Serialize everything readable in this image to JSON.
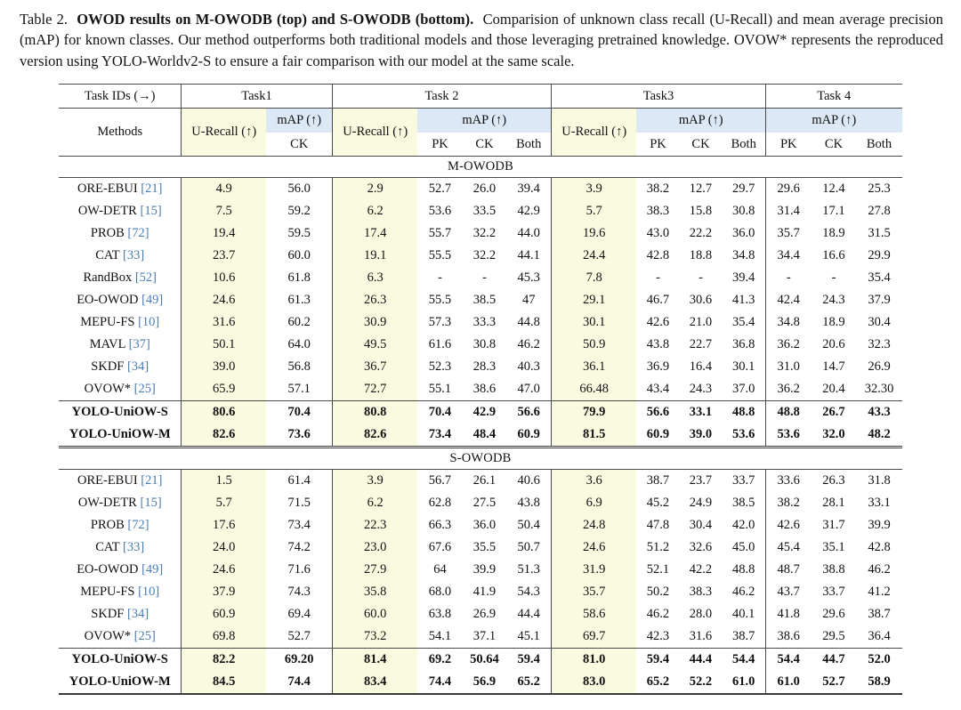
{
  "caption": {
    "label": "Table 2.",
    "bold": "OWOD results on M-OWODB (top) and S-OWODB (bottom).",
    "rest": "Comparision of unknown class recall (U-Recall) and mean average precision (mAP) for known classes. Our method outperforms both traditional models and those leveraging pretrained knowledge. OVOW* represents the reproduced version using YOLO-Worldv2-S to ensure a fair comparison with our model at the same scale."
  },
  "colors": {
    "u_recall_highlight": "#fafae1",
    "map_header_highlight": "#dce8f6",
    "citation_link": "#4d7cb0"
  },
  "table": {
    "header": {
      "task_ids_label": "Task IDs (→)",
      "methods_label": "Methods",
      "tasks": [
        "Task1",
        "Task 2",
        "Task3",
        "Task 4"
      ],
      "u_recall_label": "U-Recall (↑)",
      "map_label": "mAP (↑)",
      "sub_pk": "PK",
      "sub_ck": "CK",
      "sub_both": "Both"
    },
    "columns": [
      "Task1 U-Recall",
      "Task1 CK",
      "Task2 U-Recall",
      "Task2 PK",
      "Task2 CK",
      "Task2 Both",
      "Task3 U-Recall",
      "Task3 PK",
      "Task3 CK",
      "Task3 Both",
      "Task4 PK",
      "Task4 CK",
      "Task4 Both"
    ],
    "sections": [
      {
        "title": "M-OWODB",
        "rows": [
          {
            "method": "ORE-EBUI",
            "cite": "[21]",
            "bold": false,
            "values": [
              "4.9",
              "56.0",
              "2.9",
              "52.7",
              "26.0",
              "39.4",
              "3.9",
              "38.2",
              "12.7",
              "29.7",
              "29.6",
              "12.4",
              "25.3"
            ]
          },
          {
            "method": "OW-DETR",
            "cite": "[15]",
            "bold": false,
            "values": [
              "7.5",
              "59.2",
              "6.2",
              "53.6",
              "33.5",
              "42.9",
              "5.7",
              "38.3",
              "15.8",
              "30.8",
              "31.4",
              "17.1",
              "27.8"
            ]
          },
          {
            "method": "PROB",
            "cite": "[72]",
            "bold": false,
            "values": [
              "19.4",
              "59.5",
              "17.4",
              "55.7",
              "32.2",
              "44.0",
              "19.6",
              "43.0",
              "22.2",
              "36.0",
              "35.7",
              "18.9",
              "31.5"
            ]
          },
          {
            "method": "CAT",
            "cite": "[33]",
            "bold": false,
            "values": [
              "23.7",
              "60.0",
              "19.1",
              "55.5",
              "32.2",
              "44.1",
              "24.4",
              "42.8",
              "18.8",
              "34.8",
              "34.4",
              "16.6",
              "29.9"
            ]
          },
          {
            "method": "RandBox",
            "cite": "[52]",
            "bold": false,
            "values": [
              "10.6",
              "61.8",
              "6.3",
              "-",
              "-",
              "45.3",
              "7.8",
              "-",
              "-",
              "39.4",
              "-",
              "-",
              "35.4"
            ]
          },
          {
            "method": "EO-OWOD",
            "cite": "[49]",
            "bold": false,
            "values": [
              "24.6",
              "61.3",
              "26.3",
              "55.5",
              "38.5",
              "47",
              "29.1",
              "46.7",
              "30.6",
              "41.3",
              "42.4",
              "24.3",
              "37.9"
            ]
          },
          {
            "method": "MEPU-FS",
            "cite": "[10]",
            "bold": false,
            "values": [
              "31.6",
              "60.2",
              "30.9",
              "57.3",
              "33.3",
              "44.8",
              "30.1",
              "42.6",
              "21.0",
              "35.4",
              "34.8",
              "18.9",
              "30.4"
            ]
          },
          {
            "method": "MAVL",
            "cite": "[37]",
            "bold": false,
            "values": [
              "50.1",
              "64.0",
              "49.5",
              "61.6",
              "30.8",
              "46.2",
              "50.9",
              "43.8",
              "22.7",
              "36.8",
              "36.2",
              "20.6",
              "32.3"
            ]
          },
          {
            "method": "SKDF",
            "cite": "[34]",
            "bold": false,
            "values": [
              "39.0",
              "56.8",
              "36.7",
              "52.3",
              "28.3",
              "40.3",
              "36.1",
              "36.9",
              "16.4",
              "30.1",
              "31.0",
              "14.7",
              "26.9"
            ]
          },
          {
            "method": "OVOW*",
            "cite": "[25]",
            "bold": false,
            "values": [
              "65.9",
              "57.1",
              "72.7",
              "55.1",
              "38.6",
              "47.0",
              "66.48",
              "43.4",
              "24.3",
              "37.0",
              "36.2",
              "20.4",
              "32.30"
            ]
          },
          {
            "method": "YOLO-UniOW-S",
            "cite": "",
            "bold": true,
            "rule_above": true,
            "values": [
              "80.6",
              "70.4",
              "80.8",
              "70.4",
              "42.9",
              "56.6",
              "79.9",
              "56.6",
              "33.1",
              "48.8",
              "48.8",
              "26.7",
              "43.3"
            ]
          },
          {
            "method": "YOLO-UniOW-M",
            "cite": "",
            "bold": true,
            "values": [
              "82.6",
              "73.6",
              "82.6",
              "73.4",
              "48.4",
              "60.9",
              "81.5",
              "60.9",
              "39.0",
              "53.6",
              "53.6",
              "32.0",
              "48.2"
            ]
          }
        ]
      },
      {
        "title": "S-OWODB",
        "rows": [
          {
            "method": "ORE-EBUI",
            "cite": "[21]",
            "bold": false,
            "values": [
              "1.5",
              "61.4",
              "3.9",
              "56.7",
              "26.1",
              "40.6",
              "3.6",
              "38.7",
              "23.7",
              "33.7",
              "33.6",
              "26.3",
              "31.8"
            ]
          },
          {
            "method": "OW-DETR",
            "cite": "[15]",
            "bold": false,
            "values": [
              "5.7",
              "71.5",
              "6.2",
              "62.8",
              "27.5",
              "43.8",
              "6.9",
              "45.2",
              "24.9",
              "38.5",
              "38.2",
              "28.1",
              "33.1"
            ]
          },
          {
            "method": "PROB",
            "cite": "[72]",
            "bold": false,
            "values": [
              "17.6",
              "73.4",
              "22.3",
              "66.3",
              "36.0",
              "50.4",
              "24.8",
              "47.8",
              "30.4",
              "42.0",
              "42.6",
              "31.7",
              "39.9"
            ]
          },
          {
            "method": "CAT",
            "cite": "[33]",
            "bold": false,
            "values": [
              "24.0",
              "74.2",
              "23.0",
              "67.6",
              "35.5",
              "50.7",
              "24.6",
              "51.2",
              "32.6",
              "45.0",
              "45.4",
              "35.1",
              "42.8"
            ]
          },
          {
            "method": "EO-OWOD",
            "cite": "[49]",
            "bold": false,
            "values": [
              "24.6",
              "71.6",
              "27.9",
              "64",
              "39.9",
              "51.3",
              "31.9",
              "52.1",
              "42.2",
              "48.8",
              "48.7",
              "38.8",
              "46.2"
            ]
          },
          {
            "method": "MEPU-FS",
            "cite": "[10]",
            "bold": false,
            "values": [
              "37.9",
              "74.3",
              "35.8",
              "68.0",
              "41.9",
              "54.3",
              "35.7",
              "50.2",
              "38.3",
              "46.2",
              "43.7",
              "33.7",
              "41.2"
            ]
          },
          {
            "method": "SKDF",
            "cite": "[34]",
            "bold": false,
            "values": [
              "60.9",
              "69.4",
              "60.0",
              "63.8",
              "26.9",
              "44.4",
              "58.6",
              "46.2",
              "28.0",
              "40.1",
              "41.8",
              "29.6",
              "38.7"
            ]
          },
          {
            "method": "OVOW*",
            "cite": "[25]",
            "bold": false,
            "values": [
              "69.8",
              "52.7",
              "73.2",
              "54.1",
              "37.1",
              "45.1",
              "69.7",
              "42.3",
              "31.6",
              "38.7",
              "38.6",
              "29.5",
              "36.4"
            ]
          },
          {
            "method": "YOLO-UniOW-S",
            "cite": "",
            "bold": true,
            "rule_above": true,
            "values": [
              "82.2",
              "69.20",
              "81.4",
              "69.2",
              "50.64",
              "59.4",
              "81.0",
              "59.4",
              "44.4",
              "54.4",
              "54.4",
              "44.7",
              "52.0"
            ]
          },
          {
            "method": "YOLO-UniOW-M",
            "cite": "",
            "bold": true,
            "values": [
              "84.5",
              "74.4",
              "83.4",
              "74.4",
              "56.9",
              "65.2",
              "83.0",
              "65.2",
              "52.2",
              "61.0",
              "61.0",
              "52.7",
              "58.9"
            ]
          }
        ]
      }
    ]
  }
}
